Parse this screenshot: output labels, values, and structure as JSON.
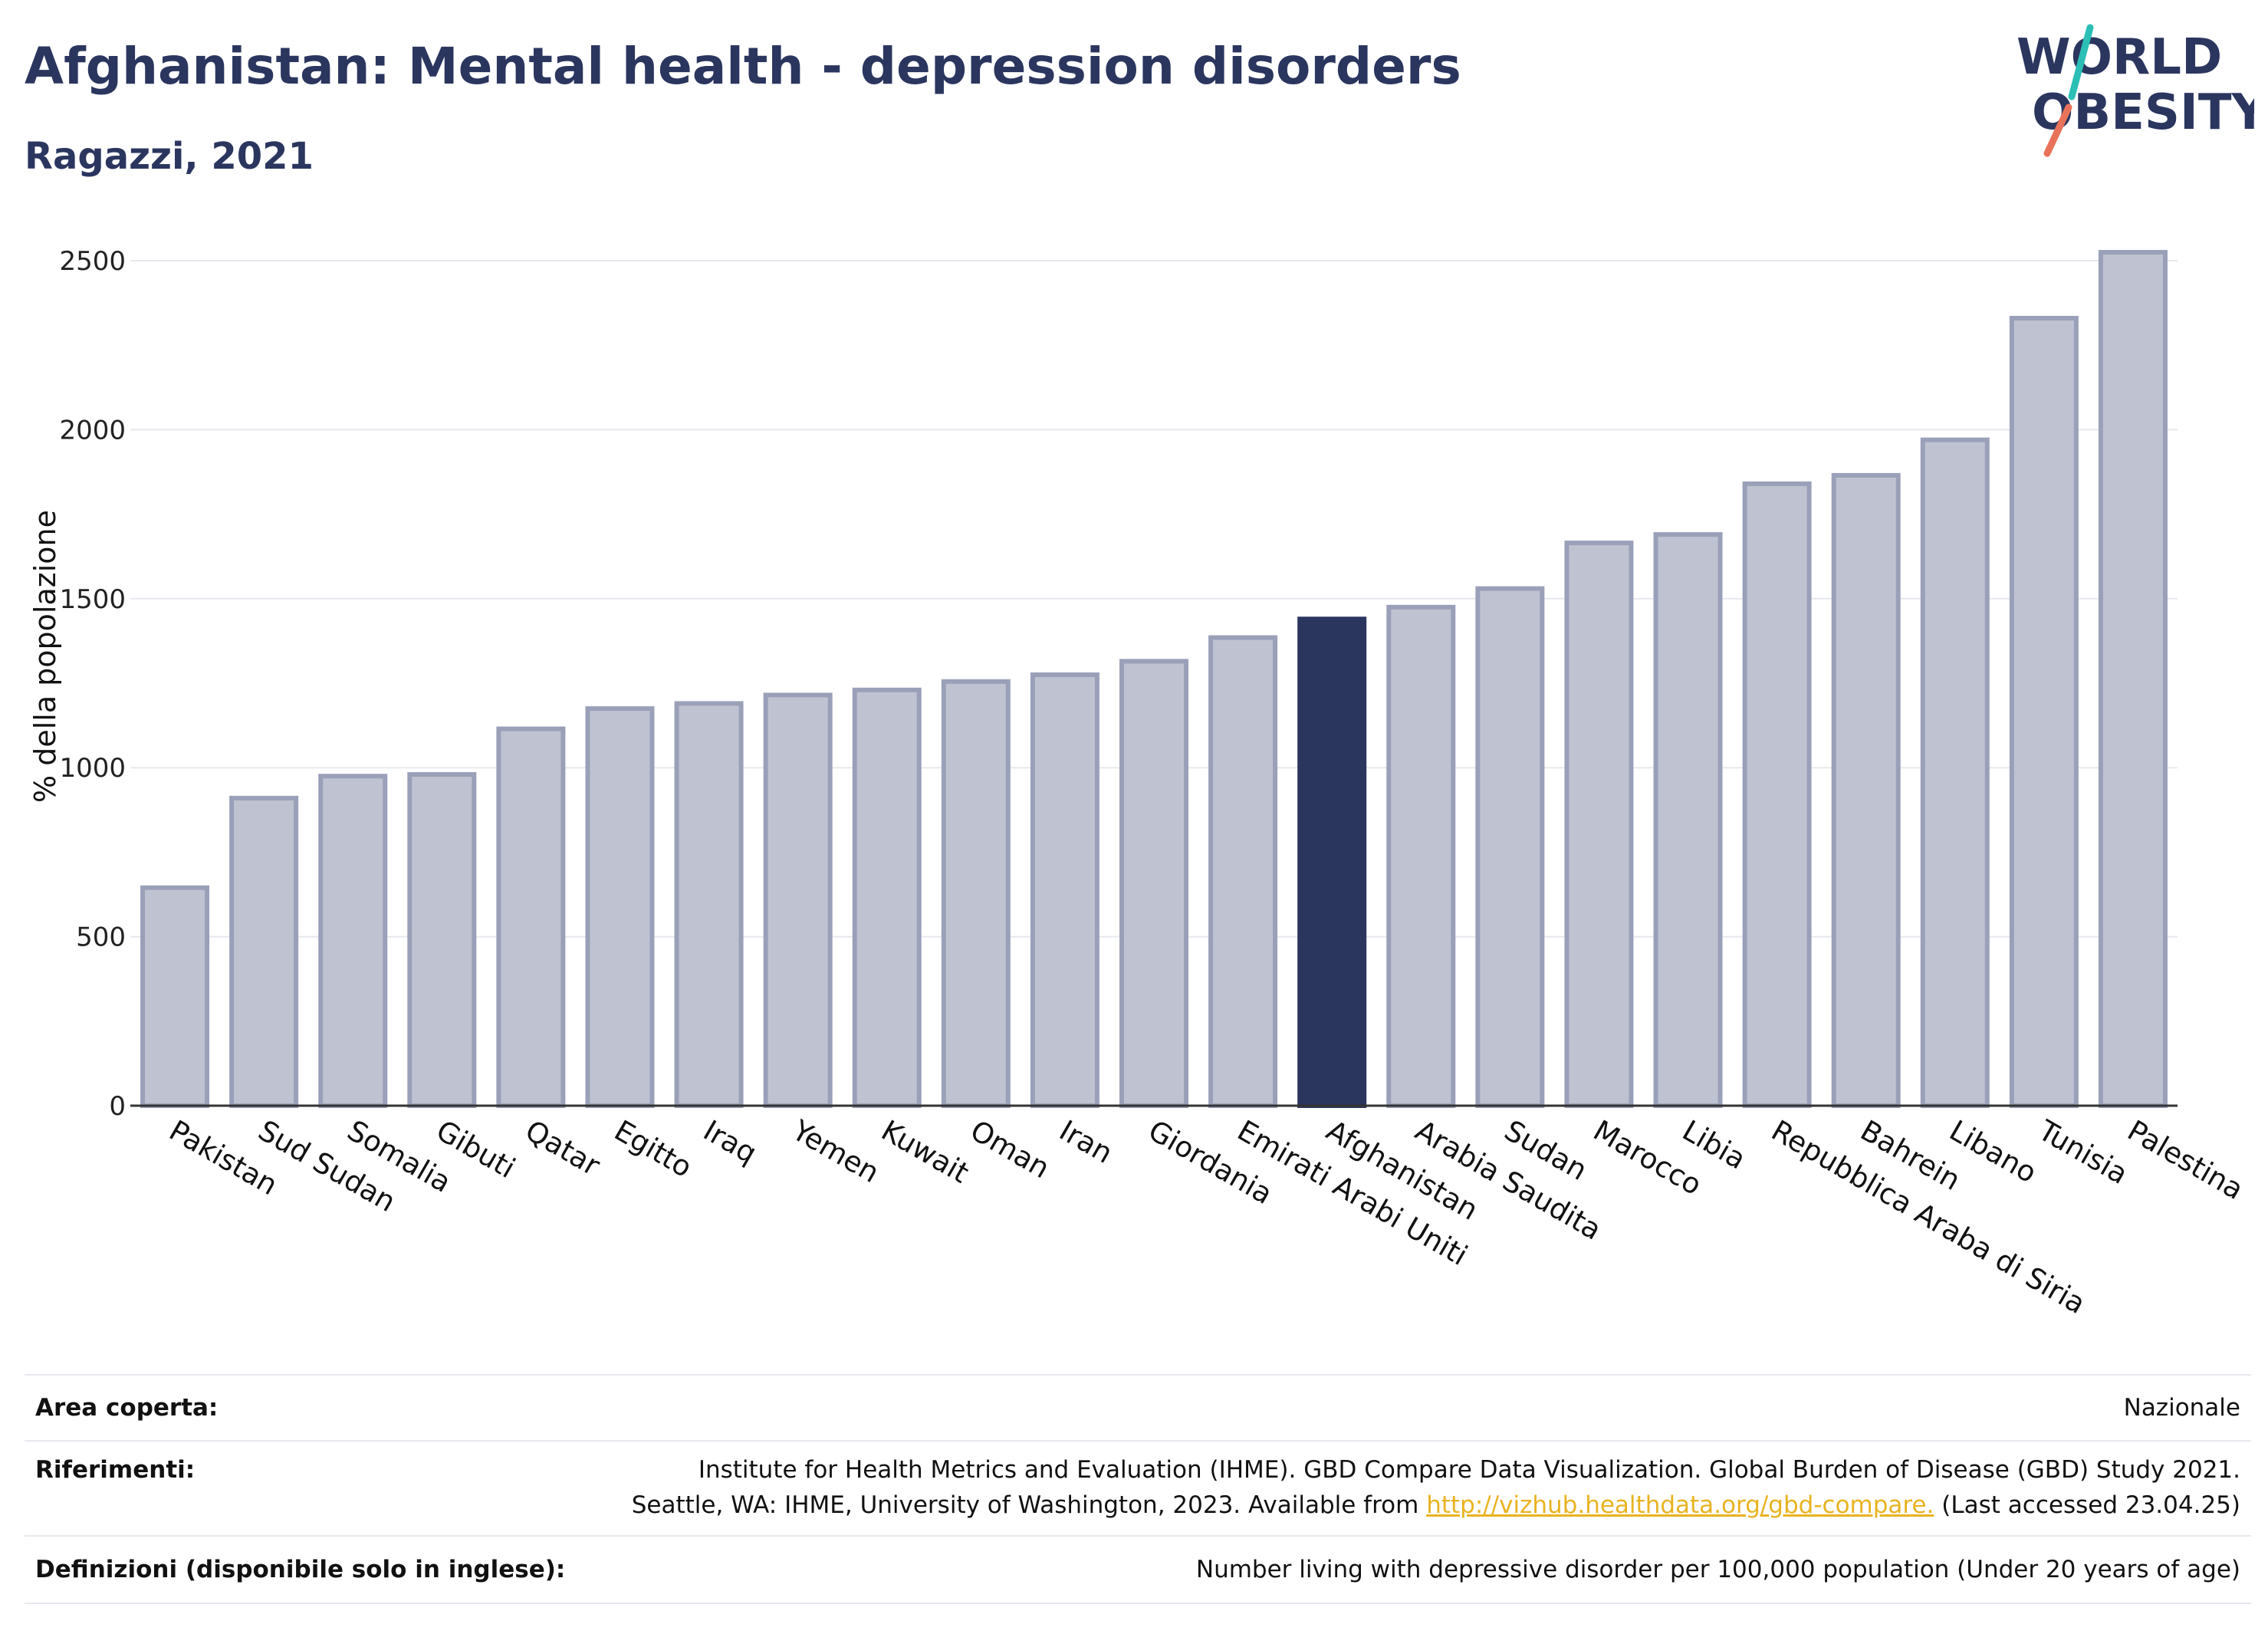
{
  "title": "Afghanistan: Mental health - depression disorders",
  "subtitle": "Ragazzi, 2021",
  "logo": {
    "line1": "WORLD",
    "line2": "OBESITY"
  },
  "colors": {
    "highlight": "#2b365f",
    "bar_fill": "#bfc3d1",
    "bar_stroke": "#9aa0b8",
    "title": "#2b365f",
    "link": "#e8b321"
  },
  "chart_data": {
    "type": "bar",
    "ylabel": "% della popolazione",
    "ylim": [
      0,
      2600
    ],
    "yticks": [
      0,
      500,
      1000,
      1500,
      2000,
      2500
    ],
    "grid": true,
    "highlight": "Afghanistan",
    "categories": [
      "Pakistan",
      "Sud Sudan",
      "Somalia",
      "Gibuti",
      "Qatar",
      "Egitto",
      "Iraq",
      "Yemen",
      "Kuwait",
      "Oman",
      "Iran",
      "Giordania",
      "Emirati Arabi Uniti",
      "Afghanistan",
      "Arabia Saudita",
      "Sudan",
      "Marocco",
      "Libia",
      "Repubblica Araba di Siria",
      "Bahrein",
      "Libano",
      "Tunisia",
      "Palestina"
    ],
    "values": [
      645,
      910,
      975,
      980,
      1115,
      1175,
      1190,
      1215,
      1230,
      1255,
      1275,
      1315,
      1385,
      1440,
      1475,
      1530,
      1665,
      1690,
      1840,
      1865,
      1970,
      2330,
      2525
    ]
  },
  "footer": {
    "area_label": "Area coperta:",
    "area_value": "Nazionale",
    "ref_label": "Riferimenti:",
    "ref_line1": "Institute for Health Metrics and Evaluation (IHME). GBD Compare Data Visualization. Global Burden of Disease (GBD) Study 2021.",
    "ref_line2_pre": "Seattle, WA: IHME, University of Washington, 2023. Available from ",
    "ref_link": "http://vizhub.healthdata.org/gbd-compare.",
    "ref_line2_post": " (Last accessed 23.04.25)",
    "def_label": "Definizioni (disponibile solo in inglese):",
    "def_value": "Number living with depressive disorder per 100,000 population (Under 20 years of age)"
  }
}
